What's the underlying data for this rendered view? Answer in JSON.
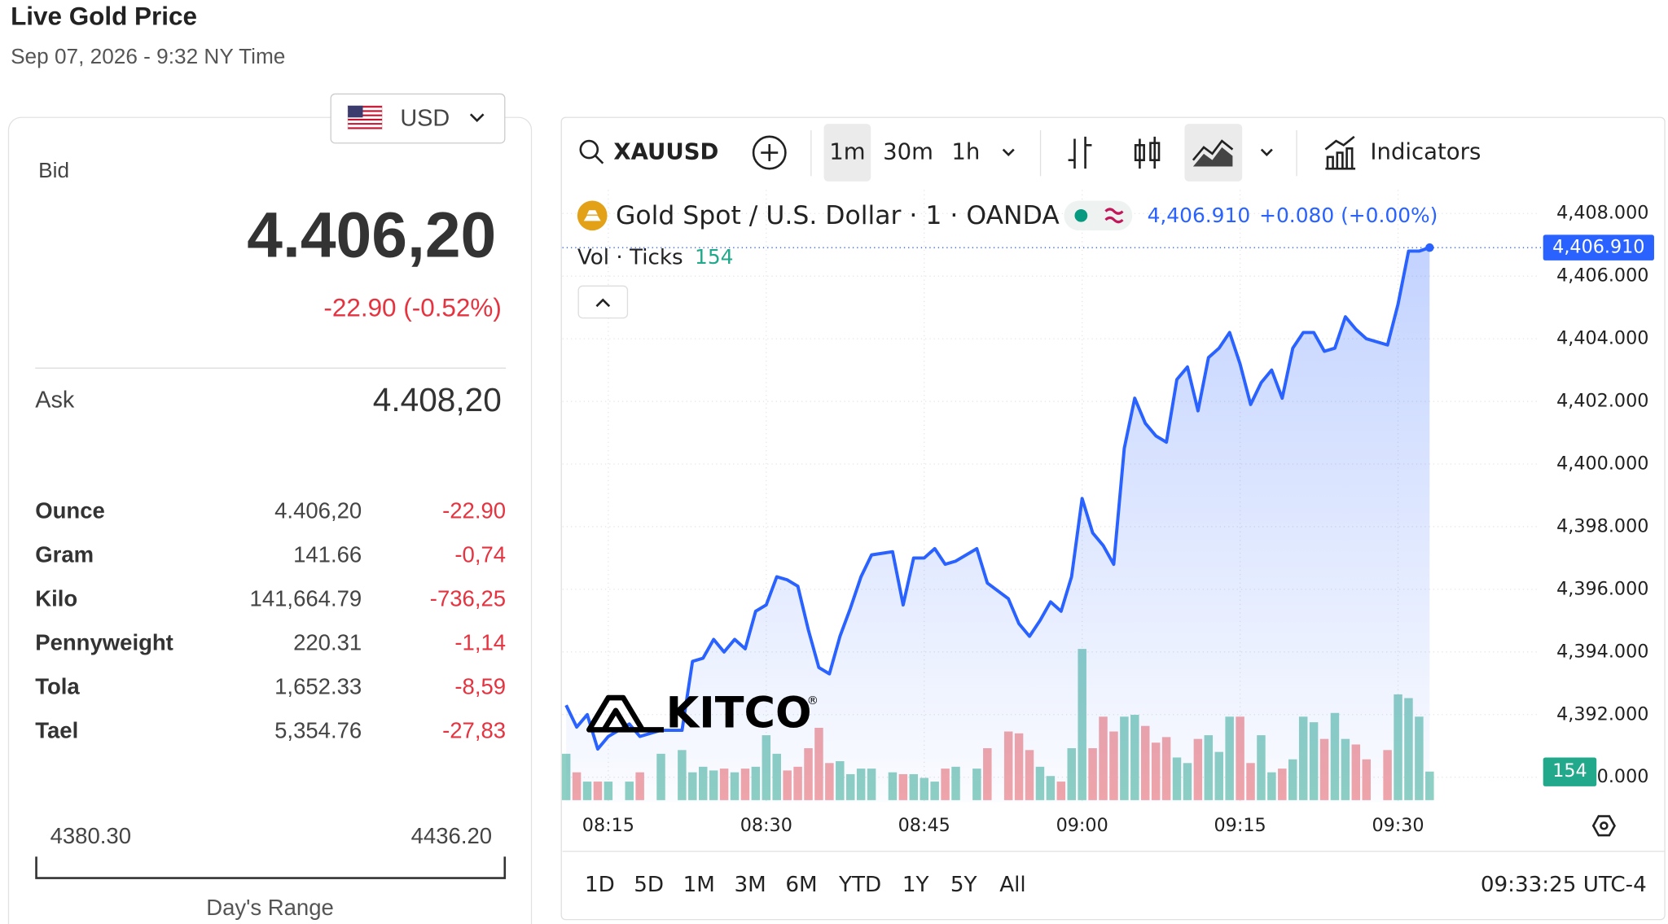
{
  "header": {
    "title": "Live Gold Price",
    "timestamp": "Sep 07, 2026 - 9:32 NY Time"
  },
  "currency": "USD",
  "quote": {
    "bid_label": "Bid",
    "bid": "4.406,20",
    "change": "-22.90 (-0.52%)",
    "ask_label": "Ask",
    "ask": "4.408,20"
  },
  "units": {
    "rows": [
      [
        "Ounce",
        "4.406,20",
        "-22.90"
      ],
      [
        "Gram",
        "141.66",
        "-0,74"
      ],
      [
        "Kilo",
        "141,664.79",
        "-736,25"
      ],
      [
        "Pennyweight",
        "220.31",
        "-1,14"
      ],
      [
        "Tola",
        "1,652.33",
        "-8,59"
      ],
      [
        "Tael",
        "5,354.76",
        "-27,83"
      ]
    ]
  },
  "day_range": {
    "low": "4380.30",
    "high": "4436.20",
    "label": "Day's Range"
  },
  "toolbar": {
    "symbol": "XAUUSD",
    "intervals": [
      "1m",
      "30m",
      "1h"
    ],
    "indicators": "Indicators"
  },
  "ranges": [
    "1D",
    "5D",
    "1M",
    "3M",
    "6M",
    "YTD",
    "1Y",
    "5Y",
    "All"
  ],
  "clock": "09:33:25 UTC-4",
  "chart_data": {
    "type": "line",
    "title": "Gold Spot / U.S. Dollar · 1 · OANDA",
    "watermark": "KITCO",
    "watermark_mark": "®",
    "last_label": "4,406.910",
    "change_label": "+0.080 (+0.00%)",
    "x": [
      "08:11",
      "08:12",
      "08:13",
      "08:14",
      "08:15",
      "08:17",
      "08:18",
      "08:20",
      "08:22",
      "08:23",
      "08:24",
      "08:25",
      "08:26",
      "08:27",
      "08:28",
      "08:29",
      "08:30",
      "08:31",
      "08:32",
      "08:33",
      "08:34",
      "08:35",
      "08:36",
      "08:37",
      "08:38",
      "08:39",
      "08:40",
      "08:42",
      "08:43",
      "08:44",
      "08:45",
      "08:46",
      "08:47",
      "08:48",
      "08:50",
      "08:51",
      "08:53",
      "08:54",
      "08:55",
      "08:56",
      "08:57",
      "08:58",
      "08:59",
      "09:00",
      "09:01",
      "09:02",
      "09:03",
      "09:04",
      "09:05",
      "09:06",
      "09:07",
      "09:08",
      "09:09",
      "09:10",
      "09:11",
      "09:12",
      "09:13",
      "09:14",
      "09:15",
      "09:16",
      "09:17",
      "09:18",
      "09:19",
      "09:20",
      "09:21",
      "09:22",
      "09:23",
      "09:24",
      "09:25",
      "09:26",
      "09:27",
      "09:29",
      "09:30",
      "09:31",
      "09:32",
      "09:33"
    ],
    "series": [
      {
        "name": "XAUUSD",
        "color": "#2962ff",
        "values": [
          4392.3,
          4391.6,
          4392.0,
          4390.9,
          4391.3,
          4391.7,
          4391.3,
          4391.5,
          4391.5,
          4393.7,
          4393.8,
          4394.4,
          4394.0,
          4394.4,
          4394.1,
          4395.3,
          4395.5,
          4396.4,
          4396.3,
          4396.1,
          4394.7,
          4393.5,
          4393.3,
          4394.5,
          4395.4,
          4396.4,
          4397.1,
          4397.2,
          4395.5,
          4397.0,
          4397.0,
          4397.3,
          4396.8,
          4396.9,
          4397.3,
          4396.2,
          4395.7,
          4394.9,
          4394.5,
          4395.0,
          4395.6,
          4395.3,
          4396.4,
          4398.9,
          4397.8,
          4397.4,
          4396.8,
          4400.5,
          4402.1,
          4401.3,
          4400.9,
          4400.7,
          4402.7,
          4403.1,
          4401.7,
          4403.4,
          4403.7,
          4404.2,
          4403.2,
          4401.9,
          4402.6,
          4403.0,
          4402.1,
          4403.7,
          4404.2,
          4404.2,
          4403.6,
          4403.7,
          4404.7,
          4404.3,
          4404.0,
          4403.8,
          4405.1,
          4406.8,
          4406.8,
          4406.91
        ]
      }
    ],
    "volume": {
      "name": "Vol · Ticks",
      "up_color": "#8ed0c3",
      "down_color": "#f2a5a8",
      "ylim": [
        0,
        3300
      ],
      "values": [
        250,
        150,
        100,
        100,
        100,
        100,
        150,
        250,
        270,
        150,
        180,
        160,
        170,
        150,
        170,
        180,
        350,
        250,
        160,
        180,
        280,
        390,
        200,
        210,
        140,
        170,
        170,
        150,
        140,
        140,
        120,
        100,
        170,
        180,
        170,
        280,
        370,
        360,
        270,
        180,
        130,
        100,
        280,
        815,
        280,
        450,
        370,
        450,
        460,
        400,
        310,
        340,
        230,
        200,
        330,
        350,
        260,
        450,
        450,
        200,
        350,
        150,
        170,
        220,
        450,
        420,
        330,
        470,
        330,
        300,
        220,
        270,
        570,
        550,
        450,
        154
      ]
    },
    "ylim": [
      4389.2,
      4408.75
    ],
    "yticks": [
      {
        "value": 4390,
        "label": "4,390.000"
      },
      {
        "value": 4392,
        "label": "4,392.000"
      },
      {
        "value": 4394,
        "label": "4,394.000"
      },
      {
        "value": 4396,
        "label": "4,396.000"
      },
      {
        "value": 4398,
        "label": "4,398.000"
      },
      {
        "value": 4400,
        "label": "4,400.000"
      },
      {
        "value": 4402,
        "label": "4,402.000"
      },
      {
        "value": 4404,
        "label": "4,404.000"
      },
      {
        "value": 4406,
        "label": "4,406.000"
      },
      {
        "value": 4408,
        "label": "4,408.000"
      }
    ],
    "xticks": [
      "08:15",
      "08:30",
      "08:45",
      "09:00",
      "09:15",
      "09:30"
    ],
    "grid": true
  }
}
